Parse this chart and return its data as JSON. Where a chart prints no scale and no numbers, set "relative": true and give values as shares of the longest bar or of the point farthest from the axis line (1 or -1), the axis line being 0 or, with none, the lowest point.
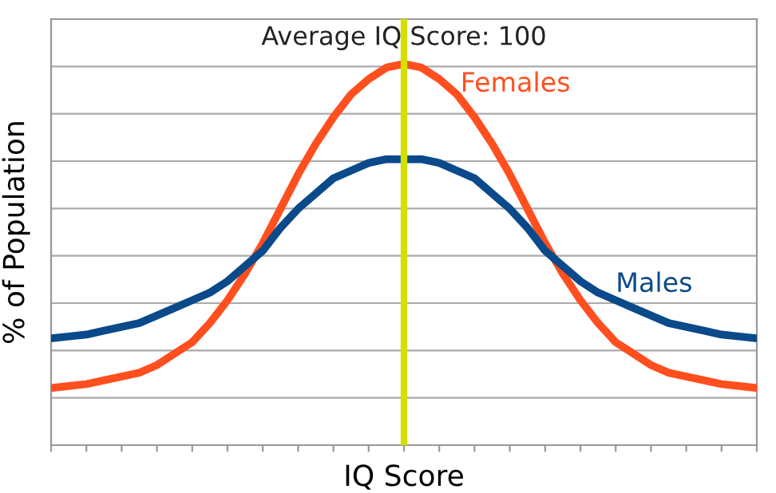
{
  "chart_data": {
    "type": "line",
    "relative": true,
    "xlabel": "IQ Score",
    "ylabel": "% of Population",
    "grid": "y",
    "legend": false,
    "marker": "none",
    "line_style": "solid",
    "categories": [
      null,
      null,
      null,
      null,
      null,
      null,
      null,
      null,
      null,
      null,
      null,
      null,
      null,
      null,
      null,
      null,
      null,
      null,
      null,
      null,
      null,
      null,
      null,
      null,
      null,
      null,
      null,
      null,
      null,
      null,
      null,
      null,
      null,
      null,
      null,
      null,
      null,
      null,
      null,
      null,
      null
    ],
    "series": [
      {
        "name": "Females",
        "color": "#ff4f1f",
        "values": [
          0.15,
          0.155,
          0.16,
          0.17,
          0.18,
          0.19,
          0.21,
          0.24,
          0.27,
          0.32,
          0.38,
          0.45,
          0.53,
          0.62,
          0.71,
          0.79,
          0.86,
          0.92,
          0.96,
          0.99,
          1.0,
          0.99,
          0.96,
          0.92,
          0.86,
          0.79,
          0.71,
          0.62,
          0.53,
          0.45,
          0.38,
          0.32,
          0.27,
          0.24,
          0.21,
          0.19,
          0.18,
          0.17,
          0.16,
          0.155,
          0.15
        ]
      },
      {
        "name": "Males",
        "color": "#0a4a8a",
        "values": [
          0.28,
          0.285,
          0.29,
          0.3,
          0.31,
          0.32,
          0.34,
          0.36,
          0.38,
          0.4,
          0.43,
          0.47,
          0.51,
          0.57,
          0.62,
          0.66,
          0.7,
          0.72,
          0.74,
          0.75,
          0.75,
          0.75,
          0.74,
          0.72,
          0.7,
          0.66,
          0.62,
          0.57,
          0.51,
          0.47,
          0.43,
          0.4,
          0.38,
          0.36,
          0.34,
          0.32,
          0.31,
          0.3,
          0.29,
          0.285,
          0.28
        ]
      }
    ],
    "annotations": [
      "Average IQ Score: 100"
    ]
  }
}
